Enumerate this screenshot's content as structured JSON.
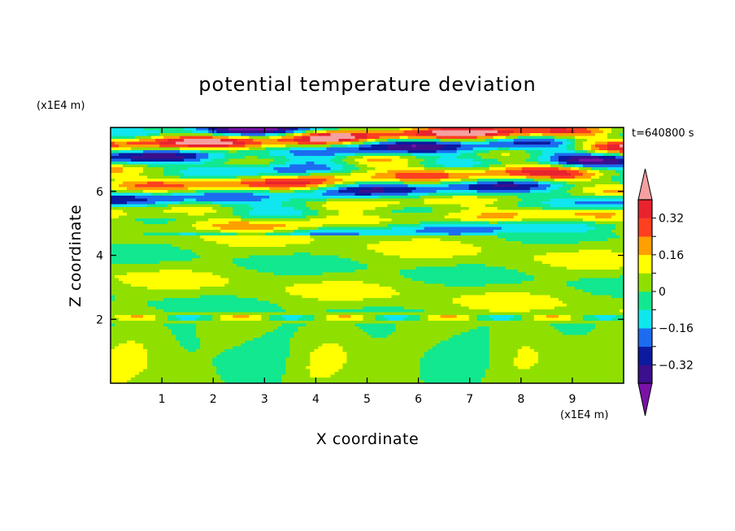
{
  "chart_data": {
    "type": "heatmap",
    "title": "potential temperature deviation",
    "xlabel": "X coordinate",
    "ylabel": "Z coordinate",
    "x_unit": "(x1E4 m)",
    "y_unit": "(x1E4 m)",
    "time_label": "t=640800 s",
    "xlim": [
      0,
      10
    ],
    "ylim": [
      0,
      8
    ],
    "x_ticks": [
      "1",
      "2",
      "3",
      "4",
      "5",
      "6",
      "7",
      "8",
      "9"
    ],
    "y_ticks": [
      "2",
      "4",
      "6"
    ],
    "colorbar": {
      "levels": [
        -0.4,
        -0.32,
        -0.24,
        -0.16,
        -0.08,
        0,
        0.08,
        0.16,
        0.24,
        0.32,
        0.4
      ],
      "tick_labels": [
        "0.32",
        "0.16",
        "0",
        "−0.16",
        "−0.32"
      ],
      "colors": {
        "below_min": "#7a12a8",
        "bins": [
          "#3c0f8c",
          "#0c1aa0",
          "#1c6cf0",
          "#10e6ef",
          "#11e890",
          "#8fe000",
          "#ffff00",
          "#ff9f00",
          "#ff4020",
          "#e8232e"
        ],
        "above_max": "#f5a0a0"
      },
      "extend": "both"
    },
    "grid": false
  }
}
